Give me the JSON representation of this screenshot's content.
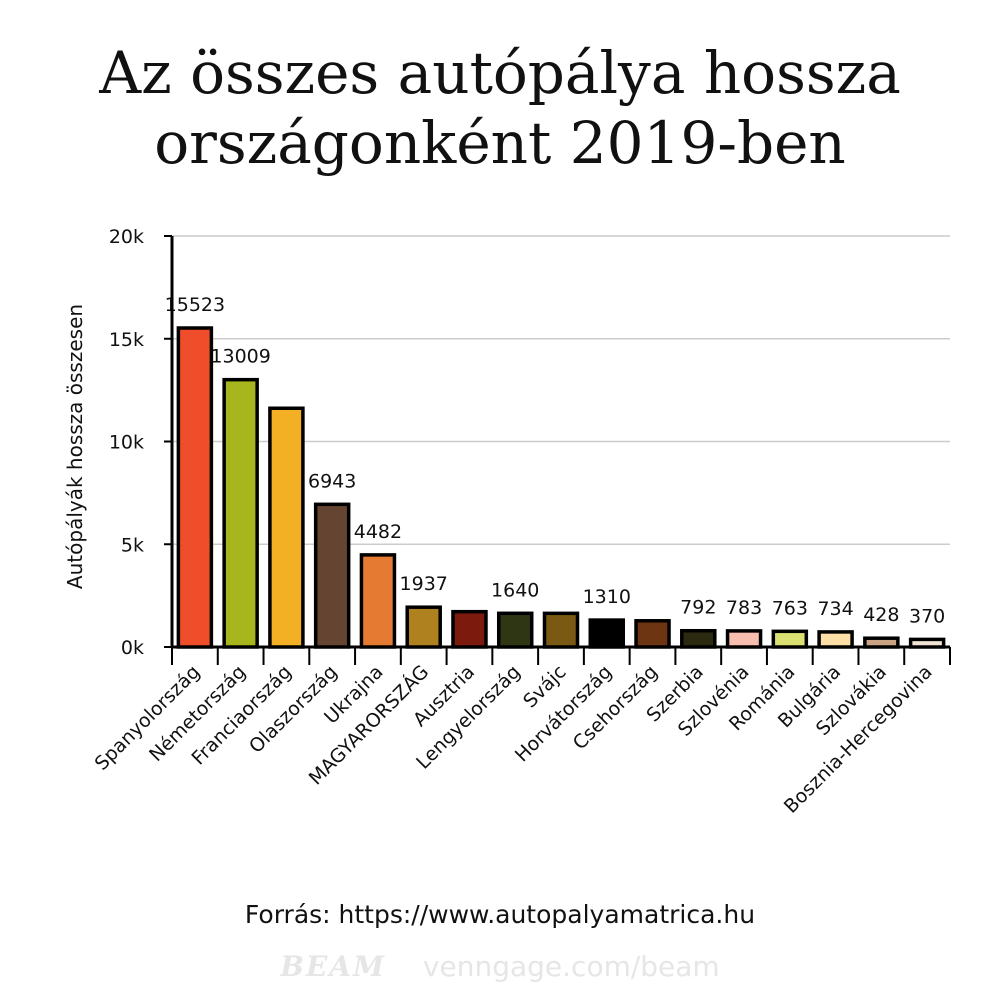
{
  "title_line1": "Az összes autópálya hossza",
  "title_line2": "országonként 2019-ben",
  "source": "Forrás: https://www.autopalyamatrica.hu",
  "brand_logo": "BEAM",
  "brand_url": "venngage.com/beam",
  "chart_data": {
    "type": "bar",
    "title": "Az összes autópálya hossza országonként 2019-ben",
    "xlabel": "",
    "ylabel": "Autópályák hossza összesen",
    "ylim": [
      0,
      20000
    ],
    "yticks": [
      0,
      5000,
      10000,
      15000,
      20000
    ],
    "ytick_labels": [
      "0k",
      "5k",
      "10k",
      "15k",
      "20k"
    ],
    "grid": true,
    "categories": [
      "Spanyolország",
      "Németország",
      "Franciaország",
      "Olaszország",
      "Ukrajna",
      "MAGYARORSZÁG",
      "Ausztria",
      "Lengyelország",
      "Svájc",
      "Horvátország",
      "Csehország",
      "Szerbia",
      "Szlovénia",
      "Románia",
      "Bulgária",
      "Szlovákia",
      "Bosznia-Hercegovina"
    ],
    "values": [
      15523,
      13009,
      11618,
      6943,
      4482,
      1937,
      1719,
      1640,
      1638,
      1310,
      1276,
      792,
      783,
      763,
      734,
      428,
      370
    ],
    "labels": [
      "15523",
      "13009",
      "",
      "6943",
      "4482",
      "1937",
      "",
      "1640",
      "",
      "1310",
      "",
      "792",
      "783",
      "763",
      "734",
      "428",
      "370"
    ],
    "colors": [
      "#f04e2b",
      "#a8b61e",
      "#f3b024",
      "#654531",
      "#e57b33",
      "#b0821f",
      "#7d1a0e",
      "#2e3614",
      "#7a5a12",
      "#000000",
      "#6e3512",
      "#2b2a10",
      "#f8bfb1",
      "#dbe072",
      "#fbdfa6",
      "#c9a383",
      "#f3e5d6"
    ]
  }
}
